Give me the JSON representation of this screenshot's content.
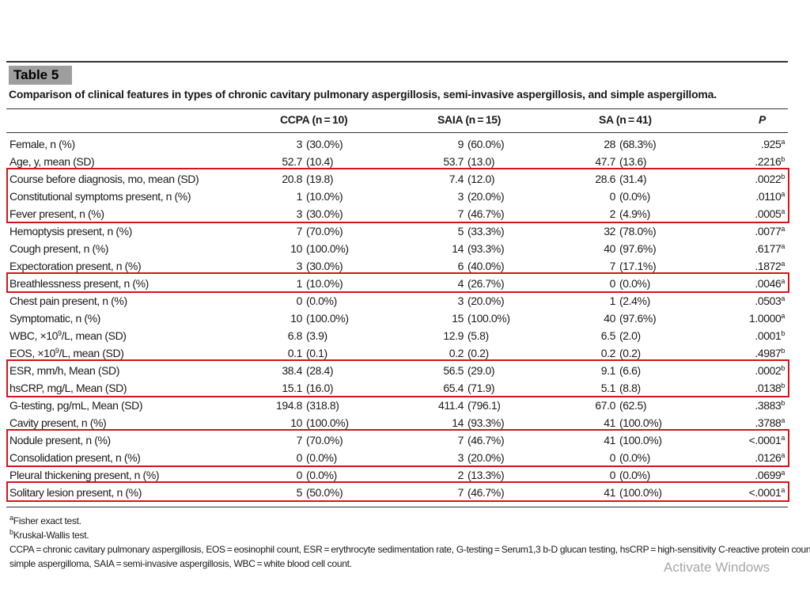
{
  "table": {
    "badge": "Table 5",
    "caption": "Comparison of clinical features in types of chronic cavitary pulmonary aspergillosis, semi-invasive aspergillosis, and simple aspergilloma.",
    "headers": {
      "ccpa": "CCPA (n = 10)",
      "saia": "SAIA (n = 15)",
      "sa": "SA (n = 41)",
      "p": "P"
    },
    "rows": [
      {
        "label": "Female, n (%)",
        "ccpa_n": "3",
        "ccpa_pct": "(30.0%)",
        "saia_n": "9",
        "saia_pct": "(60.0%)",
        "sa_n": "28",
        "sa_pct": "(68.3%)",
        "p": ".925",
        "sup": "a"
      },
      {
        "label": "Age, y, mean (SD)",
        "ccpa_n": "52.7",
        "ccpa_pct": "(10.4)",
        "saia_n": "53.7",
        "saia_pct": "(13.0)",
        "sa_n": "47.7",
        "sa_pct": "(13.6)",
        "p": ".2216",
        "sup": "b"
      },
      {
        "label": "Course before diagnosis, mo, mean (SD)",
        "ccpa_n": "20.8",
        "ccpa_pct": "(19.8)",
        "saia_n": "7.4",
        "saia_pct": "(12.0)",
        "sa_n": "28.6",
        "sa_pct": "(31.4)",
        "p": ".0022",
        "sup": "b"
      },
      {
        "label": "Constitutional symptoms present, n (%)",
        "ccpa_n": "1",
        "ccpa_pct": "(10.0%)",
        "saia_n": "3",
        "saia_pct": "(20.0%)",
        "sa_n": "0",
        "sa_pct": "(0.0%)",
        "p": ".0110",
        "sup": "a"
      },
      {
        "label": "Fever present, n (%)",
        "ccpa_n": "3",
        "ccpa_pct": "(30.0%)",
        "saia_n": "7",
        "saia_pct": "(46.7%)",
        "sa_n": "2",
        "sa_pct": "(4.9%)",
        "p": ".0005",
        "sup": "a"
      },
      {
        "label": "Hemoptysis present, n (%)",
        "ccpa_n": "7",
        "ccpa_pct": "(70.0%)",
        "saia_n": "5",
        "saia_pct": "(33.3%)",
        "sa_n": "32",
        "sa_pct": "(78.0%)",
        "p": ".0077",
        "sup": "a"
      },
      {
        "label": "Cough present, n (%)",
        "ccpa_n": "10",
        "ccpa_pct": "(100.0%)",
        "saia_n": "14",
        "saia_pct": "(93.3%)",
        "sa_n": "40",
        "sa_pct": "(97.6%)",
        "p": ".6177",
        "sup": "a"
      },
      {
        "label": "Expectoration present, n (%)",
        "ccpa_n": "3",
        "ccpa_pct": "(30.0%)",
        "saia_n": "6",
        "saia_pct": "(40.0%)",
        "sa_n": "7",
        "sa_pct": "(17.1%)",
        "p": ".1872",
        "sup": "a"
      },
      {
        "label": "Breathlessness present, n (%)",
        "ccpa_n": "1",
        "ccpa_pct": "(10.0%)",
        "saia_n": "4",
        "saia_pct": "(26.7%)",
        "sa_n": "0",
        "sa_pct": "(0.0%)",
        "p": ".0046",
        "sup": "a"
      },
      {
        "label": "Chest pain present, n (%)",
        "ccpa_n": "0",
        "ccpa_pct": "(0.0%)",
        "saia_n": "3",
        "saia_pct": "(20.0%)",
        "sa_n": "1",
        "sa_pct": "(2.4%)",
        "p": ".0503",
        "sup": "a"
      },
      {
        "label": "Symptomatic, n (%)",
        "ccpa_n": "10",
        "ccpa_pct": "(100.0%)",
        "saia_n": "15",
        "saia_pct": "(100.0%)",
        "sa_n": "40",
        "sa_pct": "(97.6%)",
        "p": "1.0000",
        "sup": "a"
      },
      {
        "label": "WBC, ×10",
        "label_sup": "9",
        "label_tail": "/L, mean (SD)",
        "ccpa_n": "6.8",
        "ccpa_pct": "(3.9)",
        "saia_n": "12.9",
        "saia_pct": "(5.8)",
        "sa_n": "6.5",
        "sa_pct": "(2.0)",
        "p": ".0001",
        "sup": "b"
      },
      {
        "label": "EOS, ×10",
        "label_sup": "9",
        "label_tail": "/L, mean (SD)",
        "ccpa_n": "0.1",
        "ccpa_pct": "(0.1)",
        "saia_n": "0.2",
        "saia_pct": "(0.2)",
        "sa_n": "0.2",
        "sa_pct": "(0.2)",
        "p": ".4987",
        "sup": "b"
      },
      {
        "label": "ESR, mm/h, Mean (SD)",
        "ccpa_n": "38.4",
        "ccpa_pct": "(28.4)",
        "saia_n": "56.5",
        "saia_pct": "(29.0)",
        "sa_n": "9.1",
        "sa_pct": "(6.6)",
        "p": ".0002",
        "sup": "b"
      },
      {
        "label": "hsCRP, mg/L, Mean (SD)",
        "ccpa_n": "15.1",
        "ccpa_pct": "(16.0)",
        "saia_n": "65.4",
        "saia_pct": "(71.9)",
        "sa_n": "5.1",
        "sa_pct": "(8.8)",
        "p": ".0138",
        "sup": "b"
      },
      {
        "label": "G-testing, pg/mL, Mean (SD)",
        "ccpa_n": "194.8",
        "ccpa_pct": "(318.8)",
        "saia_n": "411.4",
        "saia_pct": "(796.1)",
        "sa_n": "67.0",
        "sa_pct": "(62.5)",
        "p": ".3883",
        "sup": "b"
      },
      {
        "label": "Cavity present, n (%)",
        "ccpa_n": "10",
        "ccpa_pct": "(100.0%)",
        "saia_n": "14",
        "saia_pct": "(93.3%)",
        "sa_n": "41",
        "sa_pct": "(100.0%)",
        "p": ".3788",
        "sup": "a"
      },
      {
        "label": "Nodule present, n (%)",
        "ccpa_n": "7",
        "ccpa_pct": "(70.0%)",
        "saia_n": "7",
        "saia_pct": "(46.7%)",
        "sa_n": "41",
        "sa_pct": "(100.0%)",
        "p": "<.0001",
        "sup": "a"
      },
      {
        "label": "Consolidation present, n (%)",
        "ccpa_n": "0",
        "ccpa_pct": "(0.0%)",
        "saia_n": "3",
        "saia_pct": "(20.0%)",
        "sa_n": "0",
        "sa_pct": "(0.0%)",
        "p": ".0126",
        "sup": "a"
      },
      {
        "label": "Pleural thickening present, n (%)",
        "ccpa_n": "0",
        "ccpa_pct": "(0.0%)",
        "saia_n": "2",
        "saia_pct": "(13.3%)",
        "sa_n": "0",
        "sa_pct": "(0.0%)",
        "p": ".0699",
        "sup": "a"
      },
      {
        "label": "Solitary lesion present, n (%)",
        "ccpa_n": "5",
        "ccpa_pct": "(50.0%)",
        "saia_n": "7",
        "saia_pct": "(46.7%)",
        "sa_n": "41",
        "sa_pct": "(100.0%)",
        "p": "<.0001",
        "sup": "a"
      }
    ],
    "highlight_groups": [
      [
        2,
        4
      ],
      [
        8,
        8
      ],
      [
        13,
        14
      ],
      [
        17,
        18
      ],
      [
        20,
        20
      ]
    ],
    "highlight_color": "#d3141c",
    "footnotes": {
      "a_mark": "a",
      "a_text": "Fisher exact test.",
      "b_mark": "b",
      "b_text": "Kruskal-Wallis test.",
      "abbrev_line1": "CCPA = chronic cavitary pulmonary aspergillosis, EOS = eosinophil count, ESR = erythrocyte sedimentation rate, G-testing = Serum1,3 b-D glucan testing, hsCRP = high-sensitivity C-reactive protein count, SA =",
      "abbrev_line2": "simple aspergilloma, SAIA = semi-invasive aspergillosis, WBC = white blood cell count."
    }
  },
  "watermark": "Activate Windows"
}
